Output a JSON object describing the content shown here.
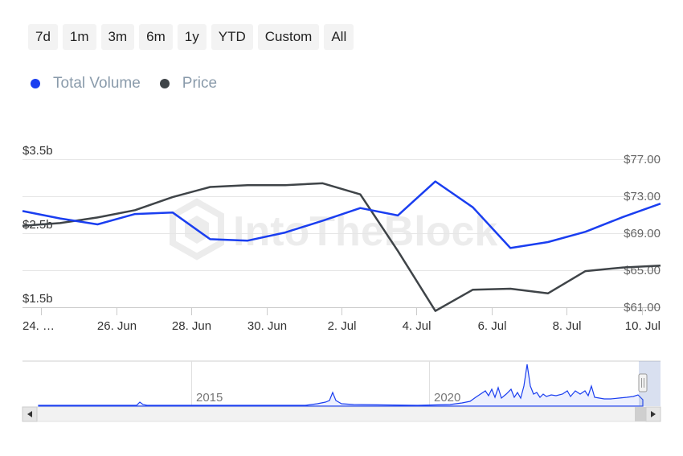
{
  "range_selector": {
    "buttons": [
      "7d",
      "1m",
      "3m",
      "6m",
      "1y",
      "YTD",
      "Custom",
      "All"
    ]
  },
  "watermark": "IntoTheBlock",
  "navigator": {
    "year_labels": [
      "2015",
      "2020"
    ]
  },
  "colors": {
    "volume": "#1a3ef0",
    "price": "#3f4448",
    "grid": "#e6e6e6",
    "navigator_fill": "#e8e8e8"
  },
  "chart_data": {
    "type": "line",
    "legend": [
      "Total Volume",
      "Price"
    ],
    "legend_placement": "top-left",
    "x_ticks": [
      "24. …",
      "26. Jun",
      "28. Jun",
      "30. Jun",
      "2. Jul",
      "4. Jul",
      "6. Jul",
      "8. Jul",
      "10. Jul"
    ],
    "y_left": {
      "ticks": [
        "$1.5b",
        "$2.5b",
        "$3.5b"
      ],
      "tick_values": [
        1.5,
        2.5,
        3.5
      ],
      "range": [
        1.5,
        3.5
      ]
    },
    "y_right": {
      "ticks": [
        "$61.00",
        "$65.00",
        "$69.00",
        "$73.00",
        "$77.00"
      ],
      "tick_values": [
        61,
        65,
        69,
        73,
        77
      ],
      "range": [
        61,
        77
      ]
    },
    "grid": true,
    "series": [
      {
        "name": "Total Volume",
        "axis": "left",
        "x": [
          23.5,
          24.5,
          25.5,
          26.5,
          27.5,
          28.5,
          29.5,
          30.5,
          31.5,
          32.5,
          33.5,
          34.5,
          35.5,
          36.5,
          37.5,
          38.5,
          39.5,
          40.5
        ],
        "values": [
          2.8,
          2.7,
          2.62,
          2.76,
          2.78,
          2.42,
          2.4,
          2.51,
          2.67,
          2.84,
          2.74,
          3.2,
          2.85,
          2.3,
          2.38,
          2.52,
          2.72,
          2.9
        ]
      },
      {
        "name": "Price",
        "axis": "right",
        "x": [
          23.5,
          24.5,
          25.5,
          26.5,
          27.5,
          28.5,
          29.5,
          30.5,
          31.5,
          32.5,
          33.5,
          34.5,
          35.5,
          36.5,
          37.5,
          38.5,
          39.5,
          40.5
        ],
        "values": [
          69.8,
          70.1,
          70.7,
          71.5,
          72.9,
          74.0,
          74.2,
          74.2,
          74.4,
          73.2,
          67.1,
          60.6,
          62.9,
          63.0,
          62.5,
          64.9,
          65.3,
          65.5
        ]
      }
    ]
  }
}
